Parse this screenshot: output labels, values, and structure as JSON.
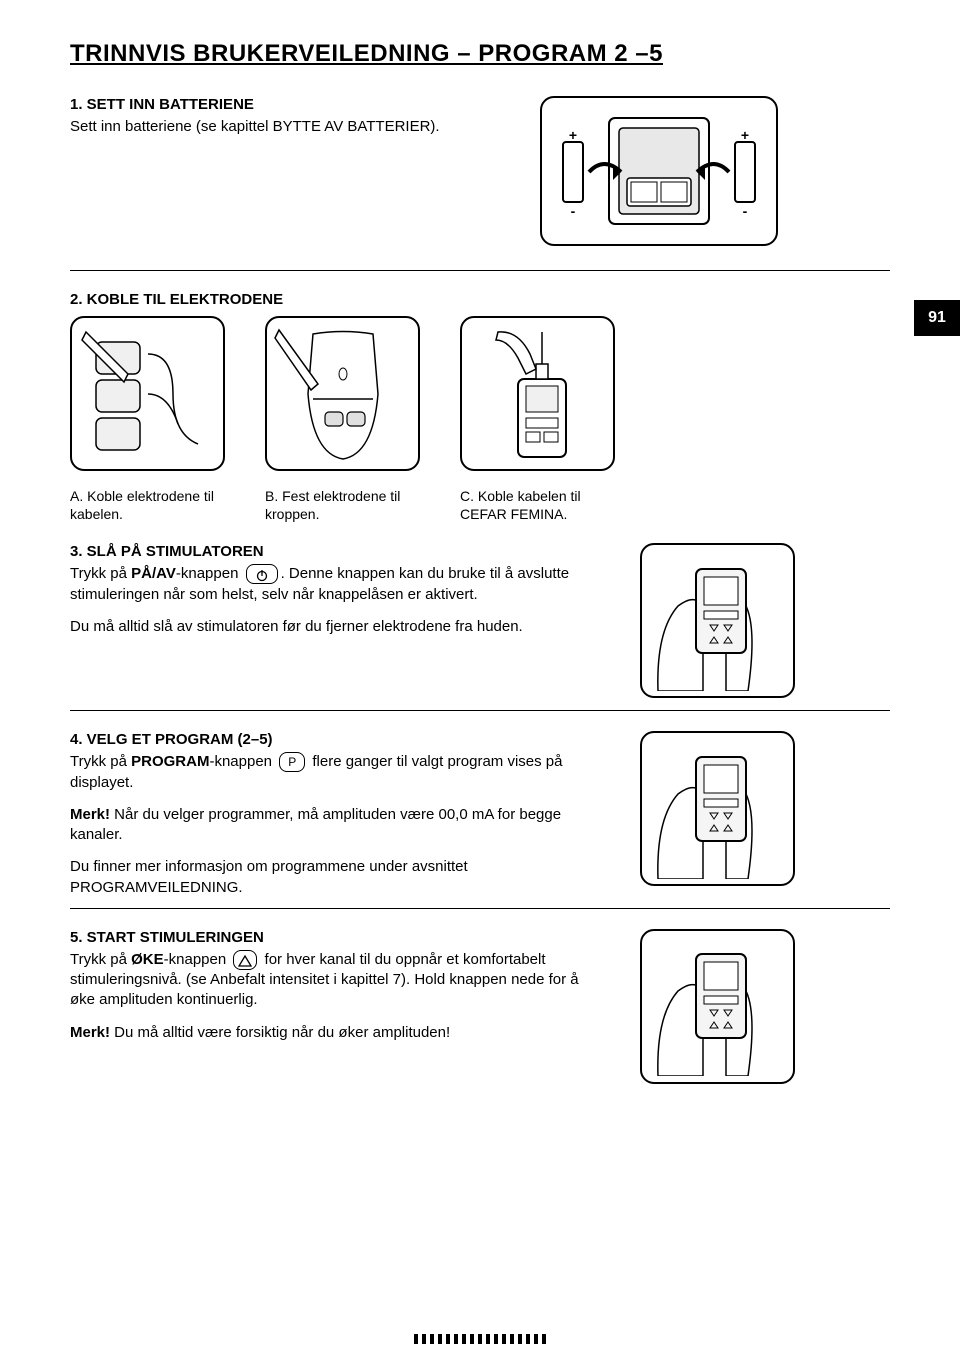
{
  "colors": {
    "text": "#000000",
    "bg": "#ffffff",
    "badge_bg": "#000000",
    "badge_text": "#ffffff",
    "border": "#000000"
  },
  "typography": {
    "title_fontsize": 24,
    "heading_fontsize": 15,
    "body_fontsize": 15,
    "caption_fontsize": 14
  },
  "page_number": "91",
  "title": "TRINNVIS BRUKERVEILEDNING – PROGRAM 2 –5",
  "step1": {
    "heading": "1. SETT INN BATTERIENE",
    "text": "Sett inn batteriene (se kapittel BYTTE AV BATTERIER).",
    "illustration": "battery-compartment-diagram"
  },
  "step2": {
    "heading": "2. KOBLE TIL ELEKTRODENE",
    "captions": {
      "a": "A. Koble elektrodene til kabelen.",
      "b": "B. Fest elektrodene til kroppen.",
      "c": "C. Koble kabelen til CEFAR FEMINA."
    },
    "illustrations": [
      "electrode-pads-cable",
      "electrodes-on-body",
      "cable-to-device"
    ]
  },
  "step3": {
    "heading": "3. SLÅ PÅ STIMULATOREN",
    "text_prefix": "Trykk på ",
    "button_label": "PÅ/AV",
    "text_suffix": "-knappen ",
    "text_after_button": ". Denne knappen kan du bruke til å avslutte stimuleringen når som helst, selv når knappelåsen er aktivert.",
    "note": "Du må alltid slå av stimulatoren før du fjerner elektrodene fra huden.",
    "button_icon": "power-icon",
    "illustration": "hand-holding-device"
  },
  "step4": {
    "heading": "4. VELG ET PROGRAM (2–5)",
    "text_prefix": "Trykk på ",
    "button_label": "PROGRAM",
    "text_mid": "-knappen ",
    "button_text": "P",
    "text_after_button": " flere ganger til valgt program vises på displayet.",
    "merk_label": "Merk!",
    "merk_text": " Når du velger programmer, må amplituden være 00,0 mA for begge kanaler.",
    "info": "Du finner mer informasjon om programmene under avsnittet PROGRAMVEILEDNING.",
    "illustration": "hand-holding-device"
  },
  "step5": {
    "heading": "5. START STIMULERINGEN",
    "text_prefix": "Trykk på ",
    "button_label": "ØKE",
    "text_mid": "-knappen ",
    "button_icon": "triangle-up-icon",
    "text_after_button": " for hver kanal til du oppnår et komfortabelt stimuleringsnivå. (se Anbefalt intensitet i kapittel 7). Hold knappen nede for å øke amplituden kontinuerlig.",
    "merk_label": "Merk!",
    "merk_text": " Du må alltid være forsiktig når du øker amplituden!",
    "illustration": "hand-holding-device"
  },
  "footer_dot_count": 17
}
